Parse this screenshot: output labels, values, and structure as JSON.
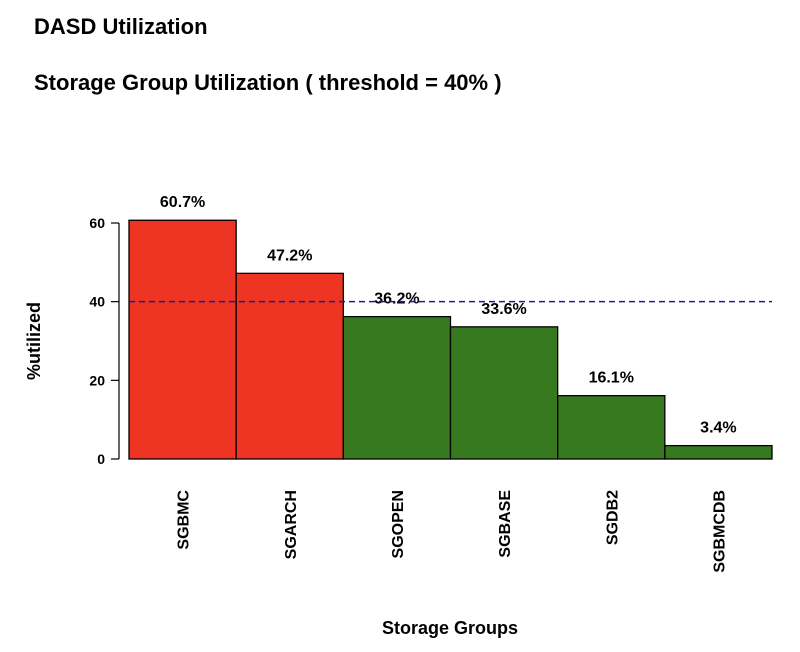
{
  "header": {
    "title": "DASD Utilization",
    "subtitle": "Storage Group Utilization ( threshold = 40% )"
  },
  "chart_data": {
    "type": "bar",
    "categories": [
      "SGBMC",
      "SGARCH",
      "SGOPEN",
      "SGBASE",
      "SGDB2",
      "SGBMCDB"
    ],
    "values": [
      60.7,
      47.2,
      36.2,
      33.6,
      16.1,
      3.4
    ],
    "value_labels": [
      "60.7%",
      "47.2%",
      "36.2%",
      "33.6%",
      "16.1%",
      "3.4%"
    ],
    "xlabel": "Storage Groups",
    "ylabel": "%utilized",
    "ylim": [
      0,
      60
    ],
    "yticks": [
      0,
      20,
      40,
      60
    ],
    "threshold": 40,
    "colors": {
      "above_threshold": "#ee3524",
      "below_threshold": "#37791f",
      "threshold_line": "#1c1c8c",
      "bar_border": "#000000"
    },
    "grid": false,
    "legend": "none"
  }
}
